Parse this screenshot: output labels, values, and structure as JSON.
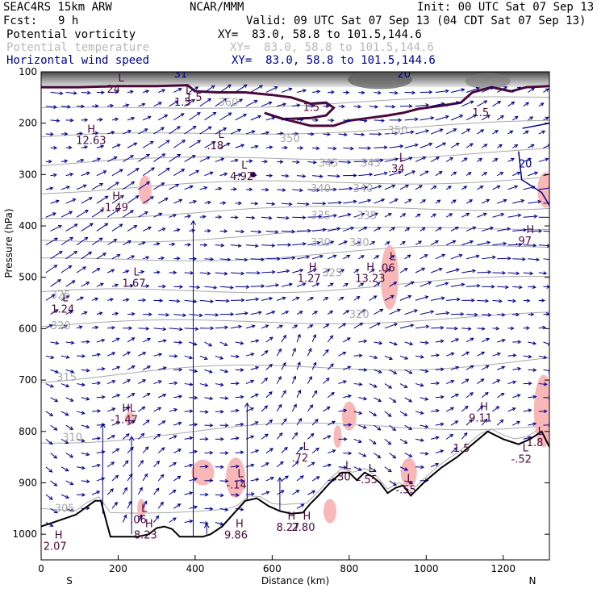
{
  "header": {
    "title": "SEAC4RS 15km ARW",
    "org": "NCAR/MMM",
    "init": "Init: 00 UTC Sat 07 Sep 13",
    "fcst_label": "Fcst:",
    "fcst_value": "9 h",
    "valid": "Valid: 09 UTC Sat 07 Sep 13 (04 CDT Sat 07 Sep 13)",
    "fields": [
      {
        "name": "Potential vorticity",
        "xy": "XY=  83.0, 58.8 to 101.5,144.6",
        "color": "#000000"
      },
      {
        "name": "Potential temperature",
        "xy": "XY=  83.0, 58.8 to 101.5,144.6",
        "color": "#b8b8b8"
      },
      {
        "name": "Horizontal wind speed",
        "xy": "XY=  83.0, 58.8 to 101.5,144.6",
        "color": "#00008b"
      }
    ]
  },
  "colors": {
    "wind_arrows": "#00008b",
    "theta": "#a8a8a8",
    "pv_contour": "#4a0a3a",
    "pv_shade": "#f8b8b8",
    "terrain": "#000000",
    "tropopause_shade": "#555555"
  },
  "chart_data": {
    "type": "vertical_cross_section",
    "xlabel": "Distance (km)",
    "ylabel": "Pressure (hPa)",
    "xlim": [
      0,
      1320
    ],
    "ylim": [
      1050,
      100
    ],
    "x_ticks": [
      "0",
      "200",
      "400",
      "600",
      "800",
      "1000",
      "1200"
    ],
    "y_ticks": [
      "100",
      "200",
      "300",
      "400",
      "500",
      "600",
      "700",
      "800",
      "900",
      "1000"
    ],
    "endpoints": {
      "left": "S",
      "right": "N"
    },
    "theta_contours": [
      {
        "label": "305",
        "x": 35,
        "p": 950
      },
      {
        "label": "310",
        "x": 55,
        "p": 812
      },
      {
        "label": "315",
        "x": 40,
        "p": 695
      },
      {
        "label": "320",
        "x": 25,
        "p": 595
      },
      {
        "label": "320",
        "x": 800,
        "p": 573
      },
      {
        "label": "325",
        "x": 25,
        "p": 535
      },
      {
        "label": "325",
        "x": 730,
        "p": 492
      },
      {
        "label": "330",
        "x": 700,
        "p": 433
      },
      {
        "label": "330",
        "x": 800,
        "p": 433
      },
      {
        "label": "335",
        "x": 700,
        "p": 380
      },
      {
        "label": "335",
        "x": 820,
        "p": 380
      },
      {
        "label": "340",
        "x": 700,
        "p": 328
      },
      {
        "label": "340",
        "x": 810,
        "p": 328
      },
      {
        "label": "345",
        "x": 720,
        "p": 278
      },
      {
        "label": "345",
        "x": 830,
        "p": 278
      },
      {
        "label": "350",
        "x": 620,
        "p": 230
      },
      {
        "label": "350",
        "x": 900,
        "p": 215
      },
      {
        "label": "360",
        "x": 460,
        "p": 160
      }
    ],
    "pv_contour_labels": [
      {
        "label": "1.5",
        "x": 375,
        "p": 150
      },
      {
        "label": "1.5",
        "x": 680,
        "p": 170
      },
      {
        "label": "1.5",
        "x": 1120,
        "p": 180
      },
      {
        "label": "1.5",
        "x": 1070,
        "p": 833
      }
    ],
    "wind_contour_labels": [
      {
        "label": "31",
        "x": 345,
        "p": 105
      },
      {
        "label": "20",
        "x": 925,
        "p": 105
      },
      {
        "label": "20",
        "x": 1240,
        "p": 280
      }
    ],
    "highs_lows": [
      {
        "type": "L",
        "value": "24",
        "x": 200,
        "p": 125
      },
      {
        "type": "L",
        "value": "1.5",
        "x": 375,
        "p": 150
      },
      {
        "type": "H",
        "value": "12.63",
        "x": 120,
        "p": 225
      },
      {
        "type": "L",
        "value": ".18",
        "x": 460,
        "p": 235
      },
      {
        "type": "L",
        "value": "4.92",
        "x": 520,
        "p": 295
      },
      {
        "type": "L",
        "value": ".34",
        "x": 930,
        "p": 280
      },
      {
        "type": "H",
        "value": "-1.49",
        "x": 185,
        "p": 355
      },
      {
        "type": "H",
        "value": ".97",
        "x": 1260,
        "p": 420
      },
      {
        "type": "L",
        "value": ".06",
        "x": 905,
        "p": 473
      },
      {
        "type": "H",
        "value": "1.27",
        "x": 695,
        "p": 493
      },
      {
        "type": "H",
        "value": "13.23",
        "x": 845,
        "p": 493
      },
      {
        "type": "L",
        "value": "1.67",
        "x": 240,
        "p": 503
      },
      {
        "type": "L",
        "value": "1.24",
        "x": 55,
        "p": 553
      },
      {
        "type": "H",
        "value": "-1.47",
        "x": 210,
        "p": 768
      },
      {
        "type": "L",
        "value": "",
        "x": 230,
        "p": 768
      },
      {
        "type": "H",
        "value": "9.11",
        "x": 1140,
        "p": 765
      },
      {
        "type": "L",
        "value": "1.8",
        "x": 1290,
        "p": 813
      },
      {
        "type": "L",
        "value": "-.52",
        "x": 1250,
        "p": 845
      },
      {
        "type": "L",
        "value": ".72",
        "x": 680,
        "p": 843
      },
      {
        "type": "L",
        "value": ".30",
        "x": 790,
        "p": 880
      },
      {
        "type": "L",
        "value": "-.55",
        "x": 850,
        "p": 885
      },
      {
        "type": "L",
        "value": "-.14",
        "x": 510,
        "p": 895
      },
      {
        "type": "L",
        "value": "-.55",
        "x": 950,
        "p": 905
      },
      {
        "type": "L",
        "value": ".06",
        "x": 260,
        "p": 963
      },
      {
        "type": "H",
        "value": "8.23",
        "x": 270,
        "p": 993
      },
      {
        "type": "H",
        "value": "9.86",
        "x": 505,
        "p": 993
      },
      {
        "type": "H",
        "value": "8.27",
        "x": 640,
        "p": 978
      },
      {
        "type": "H",
        "value": "2.80",
        "x": 680,
        "p": 978
      },
      {
        "type": "H",
        "value": "2.07",
        "x": 35,
        "p": 1015
      }
    ]
  }
}
